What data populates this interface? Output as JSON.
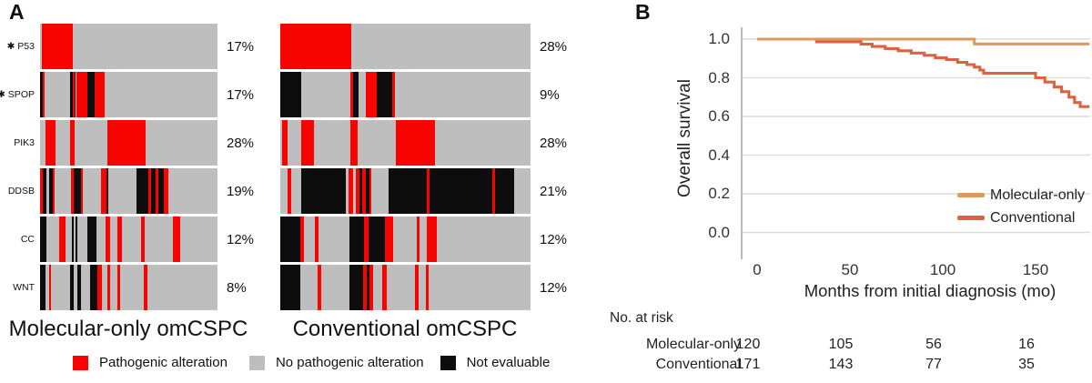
{
  "panel_a": {
    "label": "A",
    "colors": {
      "red": "#f70400",
      "gray": "#bebebe",
      "black": "#0d0d0d"
    },
    "legend": [
      {
        "label": "Pathogenic alteration",
        "color": "#f70400"
      },
      {
        "label": "No pathogenic alteration",
        "color": "#bebebe"
      },
      {
        "label": "Not evaluable",
        "color": "#0d0d0d"
      }
    ],
    "groups": [
      {
        "title": "Molecular-only omCSPC",
        "rows": [
          {
            "gene": "✱ P53",
            "pct": "17%",
            "segments": [
              [
                "g",
                1
              ],
              [
                "r",
                17.5
              ],
              [
                "g",
                81.5
              ]
            ]
          },
          {
            "gene": "✱ SPOP",
            "pct": "17%",
            "segments": [
              [
                "k",
                1.3
              ],
              [
                "r",
                1.5
              ],
              [
                "g",
                14
              ],
              [
                "k",
                1.5
              ],
              [
                "r",
                1
              ],
              [
                "k",
                0.8
              ],
              [
                "g",
                0.3
              ],
              [
                "r",
                6.5
              ],
              [
                "k",
                3.8
              ],
              [
                "r",
                5.8
              ],
              [
                "g",
                63.5
              ]
            ]
          },
          {
            "gene": "PIK3",
            "pct": "28%",
            "segments": [
              [
                "g",
                3.2
              ],
              [
                "r",
                5.3
              ],
              [
                "g",
                8.4
              ],
              [
                "r",
                2.6
              ],
              [
                "g",
                18.5
              ],
              [
                "r",
                21.3
              ],
              [
                "g",
                40.7
              ]
            ]
          },
          {
            "gene": "DDSB",
            "pct": "19%",
            "segments": [
              [
                "r",
                1.5
              ],
              [
                "k",
                2.2
              ],
              [
                "g",
                1.2
              ],
              [
                "k",
                2.2
              ],
              [
                "r",
                1.2
              ],
              [
                "g",
                9
              ],
              [
                "r",
                1.5
              ],
              [
                "k",
                4.2
              ],
              [
                "r",
                1.2
              ],
              [
                "g",
                10
              ],
              [
                "r",
                3
              ],
              [
                "k",
                1.2
              ],
              [
                "g",
                16
              ],
              [
                "k",
                6.8
              ],
              [
                "r",
                1.4
              ],
              [
                "k",
                2.5
              ],
              [
                "r",
                1.4
              ],
              [
                "k",
                3.3
              ],
              [
                "r",
                2.4
              ],
              [
                "g",
                27.8
              ]
            ]
          },
          {
            "gene": "CC",
            "pct": "12%",
            "segments": [
              [
                "k",
                3.4
              ],
              [
                "g",
                7.6
              ],
              [
                "r",
                3.4
              ],
              [
                "g",
                3.3
              ],
              [
                "k",
                1.2
              ],
              [
                "g",
                1
              ],
              [
                "k",
                1.2
              ],
              [
                "g",
                5.7
              ],
              [
                "k",
                5
              ],
              [
                "g",
                5
              ],
              [
                "r",
                2.5
              ],
              [
                "g",
                4.2
              ],
              [
                "r",
                2.6
              ],
              [
                "g",
                11
              ],
              [
                "r",
                2.1
              ],
              [
                "g",
                15.7
              ],
              [
                "r",
                4.2
              ],
              [
                "g",
                20.9
              ]
            ]
          },
          {
            "gene": "WNT",
            "pct": "8%",
            "segments": [
              [
                "k",
                3
              ],
              [
                "g",
                2
              ],
              [
                "r",
                1.4
              ],
              [
                "g",
                10.5
              ],
              [
                "k",
                2.1
              ],
              [
                "g",
                2.2
              ],
              [
                "k",
                2.1
              ],
              [
                "g",
                4.7
              ],
              [
                "k",
                4.2
              ],
              [
                "r",
                2.5
              ],
              [
                "g",
                3.4
              ],
              [
                "r",
                1.3
              ],
              [
                "g",
                4.3
              ],
              [
                "r",
                1.2
              ],
              [
                "g",
                13.5
              ],
              [
                "r",
                2.2
              ],
              [
                "g",
                39.4
              ]
            ]
          }
        ]
      },
      {
        "title": "Conventional omCSPC",
        "rows": [
          {
            "gene": "✱ P53",
            "pct": "28%",
            "segments": [
              [
                "r",
                28.5
              ],
              [
                "g",
                71.5
              ]
            ]
          },
          {
            "gene": "✱ SPOP",
            "pct": "9%",
            "segments": [
              [
                "k",
                8.5
              ],
              [
                "g",
                19.5
              ],
              [
                "r",
                1.2
              ],
              [
                "k",
                2
              ],
              [
                "g",
                3
              ],
              [
                "r",
                4.5
              ],
              [
                "k",
                6
              ],
              [
                "r",
                1.2
              ],
              [
                "g",
                54.1
              ]
            ]
          },
          {
            "gene": "PIK3",
            "pct": "28%",
            "segments": [
              [
                "g",
                0.6
              ],
              [
                "r",
                2.4
              ],
              [
                "g",
                5.5
              ],
              [
                "r",
                4.8
              ],
              [
                "g",
                14.6
              ],
              [
                "r",
                3
              ],
              [
                "g",
                15.2
              ],
              [
                "r",
                15.7
              ],
              [
                "g",
                38.2
              ]
            ]
          },
          {
            "gene": "DDSB",
            "pct": "21%",
            "segments": [
              [
                "g",
                3
              ],
              [
                "r",
                1.2
              ],
              [
                "g",
                4
              ],
              [
                "k",
                18
              ],
              [
                "g",
                1.2
              ],
              [
                "r",
                1.8
              ],
              [
                "g",
                0.8
              ],
              [
                "r",
                1.5
              ],
              [
                "k",
                1.4
              ],
              [
                "r",
                1.2
              ],
              [
                "k",
                1.4
              ],
              [
                "r",
                1
              ],
              [
                "g",
                6.6
              ],
              [
                "k",
                15.5
              ],
              [
                "r",
                1.2
              ],
              [
                "k",
                25
              ],
              [
                "r",
                1.2
              ],
              [
                "k",
                7.3
              ],
              [
                "g",
                6.7
              ]
            ]
          },
          {
            "gene": "CC",
            "pct": "12%",
            "segments": [
              [
                "k",
                7.9
              ],
              [
                "r",
                1.5
              ],
              [
                "g",
                4.4
              ],
              [
                "r",
                1.5
              ],
              [
                "g",
                12.5
              ],
              [
                "k",
                5.7
              ],
              [
                "r",
                1.8
              ],
              [
                "k",
                6.7
              ],
              [
                "r",
                3
              ],
              [
                "g",
                9.5
              ],
              [
                "r",
                1.2
              ],
              [
                "g",
                3
              ],
              [
                "r",
                3.7
              ],
              [
                "g",
                37.6
              ]
            ]
          },
          {
            "gene": "WNT",
            "pct": "12%",
            "segments": [
              [
                "k",
                7.9
              ],
              [
                "g",
                7
              ],
              [
                "r",
                1.5
              ],
              [
                "g",
                11.5
              ],
              [
                "k",
                5.5
              ],
              [
                "r",
                1.5
              ],
              [
                "k",
                1.2
              ],
              [
                "r",
                1.5
              ],
              [
                "g",
                3.7
              ],
              [
                "r",
                1.5
              ],
              [
                "g",
                11.5
              ],
              [
                "r",
                1.5
              ],
              [
                "g",
                3
              ],
              [
                "r",
                1.2
              ],
              [
                "g",
                41
              ]
            ]
          }
        ]
      }
    ]
  },
  "panel_b": {
    "label": "B",
    "legend": [
      {
        "name": "Molecular-only",
        "color": "#de9a5c"
      },
      {
        "name": "Conventional",
        "color": "#dd6244"
      }
    ],
    "risk_table": {
      "title": "No. at risk",
      "rows": [
        {
          "name": "Molecular-only",
          "values": [
            120,
            105,
            56,
            16
          ]
        },
        {
          "name": "Conventional",
          "values": [
            171,
            143,
            77,
            35
          ]
        }
      ]
    }
  },
  "chart_data": {
    "type": "line",
    "subtype": "kaplan-meier-step",
    "title": "",
    "xlabel": "Months from initial diagnosis (mo)",
    "ylabel": "Overall survival",
    "xlim": [
      -8,
      180
    ],
    "ylim": [
      0.0,
      1.0
    ],
    "grid": true,
    "legend_position": "lower right",
    "grid_color": "#dcdcdc",
    "axis_color": "#a8a8a8",
    "xticks": [
      {
        "label": "0",
        "m": 0
      },
      {
        "label": "50",
        "m": 50
      },
      {
        "label": "100",
        "m": 100
      },
      {
        "label": "150",
        "m": 150
      }
    ],
    "yticks": [
      {
        "label": "1.0",
        "v": 1.0
      },
      {
        "label": "0.8",
        "v": 0.8
      },
      {
        "label": "0.6",
        "v": 0.6
      },
      {
        "label": "0.4",
        "v": 0.4
      },
      {
        "label": "0.2",
        "v": 0.2
      },
      {
        "label": "0.0",
        "v": 0.0
      }
    ],
    "series": [
      {
        "name": "Conventional",
        "color": "#dd6244",
        "steps": [
          [
            0,
            1.0
          ],
          [
            32,
            1.0
          ],
          [
            32,
            0.986
          ],
          [
            56,
            0.986
          ],
          [
            56,
            0.974
          ],
          [
            62,
            0.974
          ],
          [
            62,
            0.962
          ],
          [
            69,
            0.962
          ],
          [
            69,
            0.951
          ],
          [
            76,
            0.951
          ],
          [
            76,
            0.94
          ],
          [
            83,
            0.94
          ],
          [
            83,
            0.928
          ],
          [
            90,
            0.928
          ],
          [
            90,
            0.916
          ],
          [
            96,
            0.916
          ],
          [
            96,
            0.903
          ],
          [
            102,
            0.903
          ],
          [
            102,
            0.894
          ],
          [
            108,
            0.894
          ],
          [
            108,
            0.88
          ],
          [
            113,
            0.88
          ],
          [
            113,
            0.868
          ],
          [
            117,
            0.868
          ],
          [
            117,
            0.855
          ],
          [
            120,
            0.855
          ],
          [
            120,
            0.84
          ],
          [
            122,
            0.84
          ],
          [
            122,
            0.823
          ],
          [
            150,
            0.823
          ],
          [
            150,
            0.8
          ],
          [
            155,
            0.8
          ],
          [
            155,
            0.778
          ],
          [
            160,
            0.778
          ],
          [
            160,
            0.752
          ],
          [
            164,
            0.752
          ],
          [
            164,
            0.728
          ],
          [
            168,
            0.728
          ],
          [
            168,
            0.7
          ],
          [
            171,
            0.7
          ],
          [
            171,
            0.672
          ],
          [
            174,
            0.672
          ],
          [
            174,
            0.651
          ],
          [
            179,
            0.651
          ]
        ]
      },
      {
        "name": "Molecular-only",
        "color": "#de9a5c",
        "steps": [
          [
            0,
            1.0
          ],
          [
            117,
            1.0
          ],
          [
            117,
            0.975
          ],
          [
            179,
            0.975
          ]
        ]
      }
    ]
  }
}
